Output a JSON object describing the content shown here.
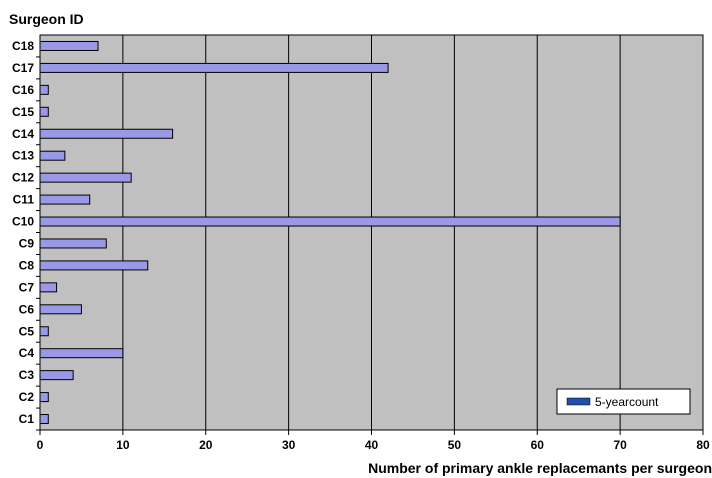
{
  "chart_data": {
    "type": "bar",
    "orientation": "horizontal",
    "ylabel": "Surgeon ID",
    "xlabel": "Number of primary ankle replacemants per surgeon",
    "xlim": [
      0,
      80
    ],
    "xticks": [
      0,
      10,
      20,
      30,
      40,
      50,
      60,
      70,
      80
    ],
    "grid": true,
    "legend_position": "bottom-right",
    "categories": [
      "C1",
      "C2",
      "C3",
      "C4",
      "C5",
      "C6",
      "C7",
      "C8",
      "C9",
      "C10",
      "C11",
      "C12",
      "C13",
      "C14",
      "C15",
      "C16",
      "C17",
      "C18"
    ],
    "series": [
      {
        "name": "5-yearcount",
        "values": [
          1,
          1,
          4,
          10,
          1,
          5,
          2,
          13,
          8,
          70,
          6,
          11,
          3,
          16,
          1,
          1,
          42,
          7
        ]
      }
    ],
    "colors": {
      "bar_fill": "#9999e6",
      "bar_stroke": "#000000",
      "plot_bg": "#c0c0c0",
      "legend_swatch": "#1f4fa8",
      "gridline": "#000000"
    }
  }
}
